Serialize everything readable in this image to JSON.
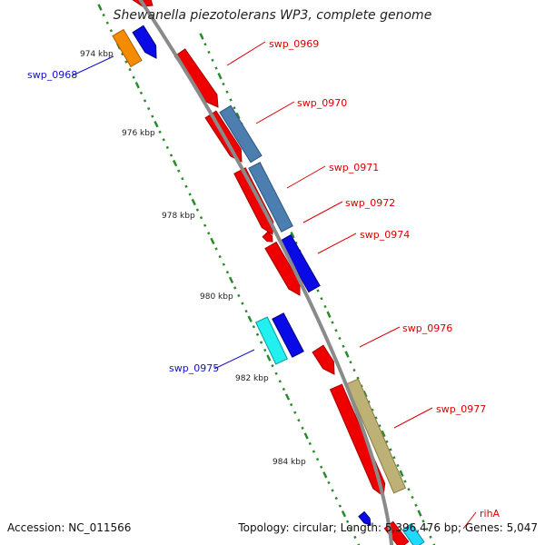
{
  "title": "Shewanella piezotolerans WP3, complete genome",
  "footer": {
    "accession": "Accession: NC_011566",
    "topology": "Topology: circular; Length: 5,396,476 bp; Genes: 5,047"
  },
  "colors": {
    "backbone": "#8a8a8a",
    "tick": "#2a8a2a",
    "forward_label": "#dd0000",
    "reverse_label": "#1010cc"
  },
  "scale_labels": [
    "974 kbp",
    "976 kbp",
    "978 kbp",
    "980 kbp",
    "982 kbp",
    "984 kbp"
  ],
  "gene_labels": {
    "forward": [
      "swp_0969",
      "swp_0970",
      "swp_0971",
      "swp_0972",
      "swp_0974",
      "swp_0976",
      "swp_0977",
      "rihA"
    ],
    "reverse": [
      "swp_0968",
      "swp_0975"
    ]
  }
}
